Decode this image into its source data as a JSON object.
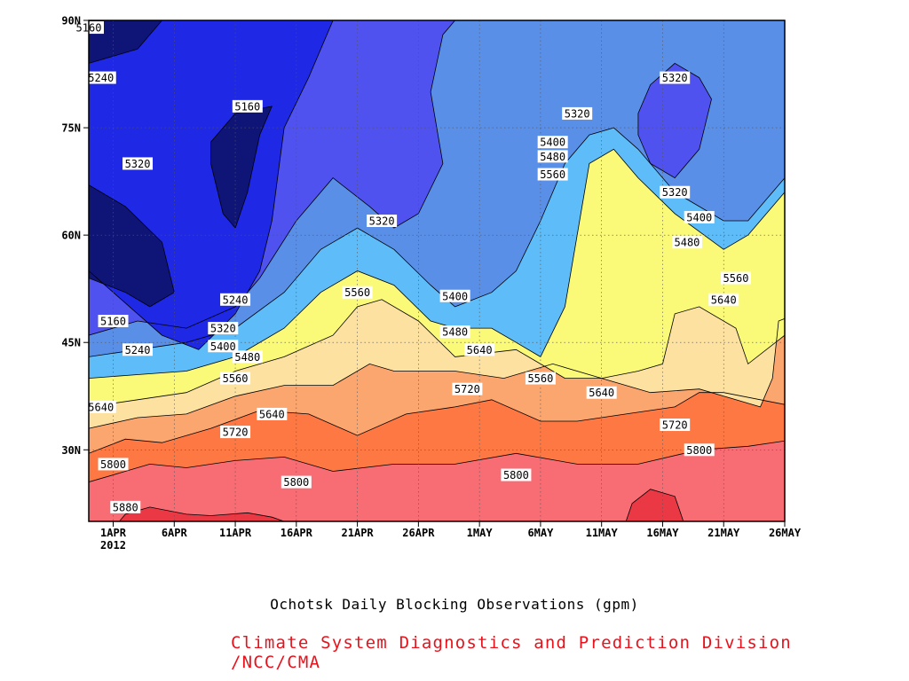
{
  "chart_data": {
    "type": "heatmap",
    "subtype": "filled-contour",
    "title": "Ochotsk Daily Blocking Observations (gpm)",
    "credit": "Climate System Diagnostics and Prediction Division /NCC/CMA",
    "xlabel": "",
    "ylabel": "",
    "x_start": "2012-03-30",
    "x_end": "2012-05-26",
    "xlim": [
      "2012-03-30",
      "2012-05-26"
    ],
    "ylim": [
      20,
      90
    ],
    "x_ticks": [
      {
        "date": "2012-04-01",
        "label": "1APR",
        "sublabel": "2012"
      },
      {
        "date": "2012-04-06",
        "label": "6APR"
      },
      {
        "date": "2012-04-11",
        "label": "11APR"
      },
      {
        "date": "2012-04-16",
        "label": "16APR"
      },
      {
        "date": "2012-04-21",
        "label": "21APR"
      },
      {
        "date": "2012-04-26",
        "label": "26APR"
      },
      {
        "date": "2012-05-01",
        "label": "1MAY"
      },
      {
        "date": "2012-05-06",
        "label": "6MAY"
      },
      {
        "date": "2012-05-11",
        "label": "11MAY"
      },
      {
        "date": "2012-05-16",
        "label": "16MAY"
      },
      {
        "date": "2012-05-21",
        "label": "21MAY"
      },
      {
        "date": "2012-05-26",
        "label": "26MAY"
      }
    ],
    "y_ticks": [
      {
        "value": 30,
        "label": "30N"
      },
      {
        "value": 45,
        "label": "45N"
      },
      {
        "value": 60,
        "label": "60N"
      },
      {
        "value": 75,
        "label": "75N"
      },
      {
        "value": 90,
        "label": "90N"
      }
    ],
    "grid": true,
    "levels": [
      {
        "value": 5160,
        "color": "#0f1577"
      },
      {
        "value": 5240,
        "color": "#1e28e5"
      },
      {
        "value": 5320,
        "color": "#4f52ee"
      },
      {
        "value": 5400,
        "color": "#5a8fe8"
      },
      {
        "value": 5480,
        "color": "#5ebcf8"
      },
      {
        "value": 5560,
        "color": "#faf978"
      },
      {
        "value": 5640,
        "color": "#fde1a0"
      },
      {
        "value": 5720,
        "color": "#fba56f"
      },
      {
        "value": 5800,
        "color": "#fd7843"
      },
      {
        "value": 5880,
        "color": "#f86c74"
      },
      {
        "value": 5960,
        "color": "#ea3845"
      }
    ],
    "contours": [
      {
        "value": 5880,
        "points": [
          [
            2.5,
            20
          ],
          [
            3,
            21
          ],
          [
            5,
            22
          ],
          [
            8,
            21
          ],
          [
            10,
            20.8
          ],
          [
            13,
            21.2
          ],
          [
            15,
            20.6
          ],
          [
            16,
            20
          ]
        ]
      },
      {
        "value": 5880,
        "points": [
          [
            44,
            20
          ],
          [
            44.5,
            22.5
          ],
          [
            46,
            24.5
          ],
          [
            48,
            23.5
          ],
          [
            48.5,
            21
          ],
          [
            48.7,
            20
          ]
        ]
      },
      {
        "value": 5800,
        "points": [
          [
            0,
            25.5
          ],
          [
            3,
            27
          ],
          [
            5,
            28
          ],
          [
            8,
            27.5
          ],
          [
            12,
            28.5
          ],
          [
            16,
            29
          ],
          [
            20,
            27
          ],
          [
            25,
            28
          ],
          [
            30,
            28
          ],
          [
            35,
            29.5
          ],
          [
            40,
            28
          ],
          [
            45,
            28
          ],
          [
            50,
            30
          ],
          [
            54,
            30.5
          ],
          [
            58,
            31.5
          ]
        ]
      },
      {
        "value": 5720,
        "points": [
          [
            0,
            29.5
          ],
          [
            3,
            31.5
          ],
          [
            6,
            31
          ],
          [
            10,
            33
          ],
          [
            14,
            35.5
          ],
          [
            18,
            35
          ],
          [
            22,
            32
          ],
          [
            26,
            35
          ],
          [
            30,
            36
          ],
          [
            33,
            37
          ],
          [
            37,
            34
          ],
          [
            40,
            34
          ],
          [
            44,
            35
          ],
          [
            48,
            36
          ],
          [
            50,
            38
          ],
          [
            52,
            38
          ],
          [
            55,
            37
          ],
          [
            58,
            36
          ]
        ]
      },
      {
        "value": 5640,
        "points": [
          [
            0,
            33
          ],
          [
            4,
            34.5
          ],
          [
            8,
            35
          ],
          [
            12,
            37.5
          ],
          [
            16,
            39
          ],
          [
            20,
            39
          ],
          [
            23,
            42
          ],
          [
            25,
            41
          ],
          [
            30,
            41
          ],
          [
            34,
            40
          ],
          [
            38,
            42
          ],
          [
            42,
            40
          ],
          [
            46,
            38
          ],
          [
            50,
            38.5
          ],
          [
            53,
            37
          ],
          [
            55,
            36
          ],
          [
            56,
            40
          ],
          [
            56.5,
            48
          ],
          [
            58,
            49
          ]
        ]
      },
      {
        "value": 5560,
        "points": [
          [
            0,
            36
          ],
          [
            4,
            37
          ],
          [
            8,
            38
          ],
          [
            12,
            41
          ],
          [
            16,
            43
          ],
          [
            20,
            46
          ],
          [
            22,
            50
          ],
          [
            24,
            51
          ],
          [
            27,
            48
          ],
          [
            30,
            43
          ],
          [
            35,
            44
          ],
          [
            37,
            42
          ],
          [
            39,
            40
          ],
          [
            42,
            40
          ],
          [
            45,
            41
          ],
          [
            47,
            42
          ],
          [
            48,
            49
          ],
          [
            50,
            50
          ],
          [
            53,
            47
          ],
          [
            54,
            42
          ],
          [
            57,
            46
          ],
          [
            58,
            48
          ]
        ]
      },
      {
        "value": 5480,
        "points": [
          [
            0,
            40
          ],
          [
            4,
            40.5
          ],
          [
            8,
            41
          ],
          [
            12,
            43
          ],
          [
            16,
            47
          ],
          [
            19,
            52
          ],
          [
            22,
            55
          ],
          [
            25,
            53
          ],
          [
            28,
            48
          ],
          [
            30,
            47
          ],
          [
            33,
            47
          ],
          [
            35,
            45
          ],
          [
            37,
            43
          ],
          [
            39,
            50
          ],
          [
            40,
            60
          ],
          [
            41,
            70
          ],
          [
            43,
            72
          ],
          [
            45,
            68
          ],
          [
            48,
            63
          ],
          [
            52,
            58
          ],
          [
            54,
            60
          ],
          [
            57,
            66
          ],
          [
            58,
            70
          ]
        ]
      },
      {
        "value": 5400,
        "points": [
          [
            0,
            43
          ],
          [
            4,
            44
          ],
          [
            8,
            45
          ],
          [
            12,
            47
          ],
          [
            16,
            52
          ],
          [
            19,
            58
          ],
          [
            22,
            61
          ],
          [
            25,
            58
          ],
          [
            28,
            53
          ],
          [
            30,
            50
          ],
          [
            33,
            52
          ],
          [
            35,
            55
          ],
          [
            37,
            62
          ],
          [
            39,
            70
          ],
          [
            41,
            74
          ],
          [
            43,
            75
          ],
          [
            45,
            72
          ],
          [
            48,
            66
          ],
          [
            52,
            62
          ],
          [
            54,
            62
          ],
          [
            57,
            68
          ],
          [
            58,
            74
          ]
        ]
      },
      {
        "value": 5320,
        "points": [
          [
            0,
            46
          ],
          [
            4,
            48
          ],
          [
            8,
            47
          ],
          [
            12,
            50
          ],
          [
            14,
            54
          ],
          [
            17,
            62
          ],
          [
            20,
            68
          ],
          [
            23,
            64
          ],
          [
            25,
            61
          ],
          [
            27,
            63
          ],
          [
            29,
            70
          ],
          [
            28,
            80
          ],
          [
            29,
            88
          ],
          [
            30,
            90
          ]
        ]
      },
      {
        "value": 5320,
        "points": [
          [
            45,
            77
          ],
          [
            46,
            81
          ],
          [
            48,
            84
          ],
          [
            50,
            82
          ],
          [
            51,
            79
          ],
          [
            50,
            72
          ],
          [
            48,
            68
          ],
          [
            46,
            70
          ],
          [
            45,
            74
          ],
          [
            45,
            77
          ]
        ]
      },
      {
        "value": 5240,
        "points": [
          [
            0,
            55
          ],
          [
            2,
            52
          ],
          [
            4,
            49
          ],
          [
            6,
            46
          ],
          [
            9,
            44
          ],
          [
            12,
            49
          ],
          [
            14,
            55
          ],
          [
            15,
            62
          ],
          [
            16,
            75
          ],
          [
            18,
            82
          ],
          [
            20,
            90
          ]
        ]
      },
      {
        "value": 5160,
        "points": [
          [
            0,
            67
          ],
          [
            3,
            64
          ],
          [
            6,
            59
          ],
          [
            7,
            52
          ],
          [
            5,
            50
          ],
          [
            3,
            52
          ],
          [
            0,
            54
          ]
        ]
      },
      {
        "value": 5160,
        "points": [
          [
            10,
            70
          ],
          [
            11,
            63
          ],
          [
            12,
            61
          ],
          [
            13,
            66
          ],
          [
            14,
            74
          ],
          [
            15,
            78
          ],
          [
            12,
            77
          ],
          [
            10,
            73
          ],
          [
            10,
            70
          ]
        ]
      },
      {
        "value": 5160,
        "points": [
          [
            0,
            84
          ],
          [
            4,
            86
          ],
          [
            6,
            90
          ]
        ]
      }
    ],
    "contour_labels": [
      {
        "value": 5160,
        "date": "2012-03-30",
        "lat": 89
      },
      {
        "value": 5240,
        "date": "2012-03-31",
        "lat": 82
      },
      {
        "value": 5320,
        "date": "2012-04-03",
        "lat": 70
      },
      {
        "value": 5160,
        "date": "2012-04-12",
        "lat": 78
      },
      {
        "value": 5160,
        "date": "2012-04-01",
        "lat": 48
      },
      {
        "value": 5240,
        "date": "2012-04-03",
        "lat": 44
      },
      {
        "value": 5240,
        "date": "2012-04-11",
        "lat": 51
      },
      {
        "value": 5320,
        "date": "2012-04-10",
        "lat": 47
      },
      {
        "value": 5400,
        "date": "2012-04-10",
        "lat": 44.5
      },
      {
        "value": 5480,
        "date": "2012-04-12",
        "lat": 43
      },
      {
        "value": 5560,
        "date": "2012-04-11",
        "lat": 40
      },
      {
        "value": 5640,
        "date": "2012-03-31",
        "lat": 36
      },
      {
        "value": 5720,
        "date": "2012-04-11",
        "lat": 32.5
      },
      {
        "value": 5640,
        "date": "2012-04-14",
        "lat": 35
      },
      {
        "value": 5800,
        "date": "2012-04-01",
        "lat": 28
      },
      {
        "value": 5880,
        "date": "2012-04-02",
        "lat": 22
      },
      {
        "value": 5800,
        "date": "2012-04-16",
        "lat": 25.5
      },
      {
        "value": 5560,
        "date": "2012-04-21",
        "lat": 52
      },
      {
        "value": 5320,
        "date": "2012-04-23",
        "lat": 62
      },
      {
        "value": 5400,
        "date": "2012-04-29",
        "lat": 51.5
      },
      {
        "value": 5480,
        "date": "2012-04-29",
        "lat": 46.5
      },
      {
        "value": 5640,
        "date": "2012-05-01",
        "lat": 44
      },
      {
        "value": 5720,
        "date": "2012-04-30",
        "lat": 38.5
      },
      {
        "value": 5800,
        "date": "2012-05-04",
        "lat": 26.5
      },
      {
        "value": 5560,
        "date": "2012-05-06",
        "lat": 40
      },
      {
        "value": 5640,
        "date": "2012-05-11",
        "lat": 38
      },
      {
        "value": 5400,
        "date": "2012-05-07",
        "lat": 73
      },
      {
        "value": 5480,
        "date": "2012-05-07",
        "lat": 71
      },
      {
        "value": 5560,
        "date": "2012-05-07",
        "lat": 68.5
      },
      {
        "value": 5320,
        "date": "2012-05-09",
        "lat": 77
      },
      {
        "value": 5320,
        "date": "2012-05-17",
        "lat": 82
      },
      {
        "value": 5320,
        "date": "2012-05-17",
        "lat": 66
      },
      {
        "value": 5400,
        "date": "2012-05-19",
        "lat": 62.5
      },
      {
        "value": 5480,
        "date": "2012-05-18",
        "lat": 59
      },
      {
        "value": 5560,
        "date": "2012-05-22",
        "lat": 54
      },
      {
        "value": 5640,
        "date": "2012-05-21",
        "lat": 51
      },
      {
        "value": 5720,
        "date": "2012-05-17",
        "lat": 33.5
      },
      {
        "value": 5800,
        "date": "2012-05-19",
        "lat": 30
      }
    ],
    "extremes": [
      {
        "value": 5960,
        "date": "2012-05-17",
        "lat": 22
      },
      {
        "value": 5960,
        "date": "2012-04-03",
        "lat": 20.5
      },
      {
        "value": 5960,
        "date": "2012-04-12",
        "lat": 20.3
      }
    ]
  }
}
